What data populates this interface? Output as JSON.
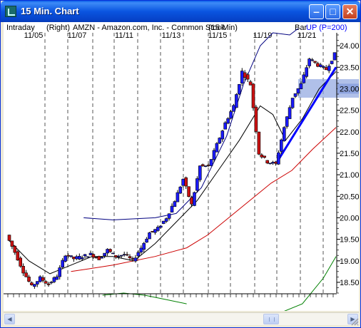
{
  "window": {
    "title": "15 Min. Chart",
    "icon": "chart-app-icon",
    "controls": [
      "minimize-icon",
      "maximize-icon",
      "close-icon"
    ]
  },
  "header": {
    "left": "Intraday",
    "scale": "(Right)",
    "symbol_desc": "AMZN - Amazon.com, Inc. - Common Stock",
    "interval": "(15-Min)",
    "bar_label": "Bar",
    "trend_label": "UP (P=200)",
    "trend_color": "#0000ff"
  },
  "chart_data": {
    "type": "line",
    "title": "AMZN - Amazon.com, Inc. - Common Stock (15-Min)",
    "x_tick_labels": [
      "11/05",
      "11/07",
      "11/11",
      "11/13",
      "11/15",
      "11/19",
      "11/21"
    ],
    "y_tick_labels": [
      "24.00",
      "23.50",
      "23.00",
      "22.50",
      "22.00",
      "21.50",
      "21.00",
      "20.50",
      "20.00",
      "19.50",
      "19.00",
      "18.50"
    ],
    "y_range": [
      18.25,
      24.25
    ],
    "highlighted_price": "23.00",
    "price": [
      [
        0,
        19.6
      ],
      [
        4,
        19.2
      ],
      [
        8,
        18.75
      ],
      [
        12,
        18.4
      ],
      [
        16,
        18.6
      ],
      [
        20,
        18.45
      ],
      [
        24,
        18.65
      ],
      [
        28,
        19.15
      ],
      [
        32,
        19.05
      ],
      [
        36,
        19.1
      ],
      [
        40,
        19.15
      ],
      [
        44,
        19.05
      ],
      [
        48,
        19.25
      ],
      [
        52,
        19.1
      ],
      [
        56,
        19.15
      ],
      [
        60,
        19.0
      ],
      [
        64,
        19.3
      ],
      [
        68,
        19.65
      ],
      [
        72,
        19.75
      ],
      [
        76,
        20.0
      ],
      [
        80,
        20.4
      ],
      [
        84,
        20.9
      ],
      [
        88,
        20.3
      ],
      [
        92,
        21.2
      ],
      [
        96,
        21.2
      ],
      [
        100,
        21.7
      ],
      [
        104,
        22.2
      ],
      [
        108,
        22.6
      ],
      [
        112,
        23.4
      ],
      [
        116,
        23.1
      ],
      [
        120,
        21.5
      ],
      [
        124,
        21.3
      ],
      [
        128,
        21.25
      ],
      [
        132,
        22.1
      ],
      [
        136,
        22.8
      ],
      [
        140,
        23.1
      ],
      [
        144,
        23.7
      ],
      [
        148,
        23.55
      ],
      [
        152,
        23.45
      ],
      [
        156,
        23.8
      ]
    ],
    "overlays": [
      {
        "role": "short-ma",
        "color": "#000000",
        "points": [
          [
            0,
            19.5
          ],
          [
            10,
            19.0
          ],
          [
            20,
            18.7
          ],
          [
            30,
            18.9
          ],
          [
            40,
            19.1
          ],
          [
            50,
            19.1
          ],
          [
            60,
            19.0
          ],
          [
            70,
            19.4
          ],
          [
            80,
            19.9
          ],
          [
            90,
            20.4
          ],
          [
            100,
            21.1
          ],
          [
            110,
            21.8
          ],
          [
            120,
            22.6
          ],
          [
            126,
            22.4
          ],
          [
            132,
            21.8
          ],
          [
            140,
            22.3
          ],
          [
            148,
            23.0
          ],
          [
            156,
            23.4
          ]
        ]
      },
      {
        "role": "long-ma",
        "color": "#cc0000",
        "points": [
          [
            30,
            18.75
          ],
          [
            50,
            18.9
          ],
          [
            70,
            19.1
          ],
          [
            85,
            19.3
          ],
          [
            95,
            19.6
          ],
          [
            105,
            20.0
          ],
          [
            115,
            20.4
          ],
          [
            125,
            20.8
          ],
          [
            135,
            21.1
          ],
          [
            145,
            21.6
          ],
          [
            156,
            22.1
          ]
        ]
      },
      {
        "role": "upper-band",
        "color": "#000080",
        "points": [
          [
            36,
            20.0
          ],
          [
            50,
            19.95
          ],
          [
            70,
            20.0
          ],
          [
            80,
            20.1
          ],
          [
            92,
            20.7
          ],
          [
            104,
            21.9
          ],
          [
            112,
            23.1
          ],
          [
            120,
            24.0
          ],
          [
            126,
            24.3
          ],
          [
            134,
            24.25
          ],
          [
            138,
            24.4
          ]
        ]
      },
      {
        "role": "trend-line",
        "color": "#0000ff",
        "points": [
          [
            128,
            21.3
          ],
          [
            156,
            23.5
          ]
        ]
      }
    ],
    "indicator_points": [
      [
        45,
        18.2
      ],
      [
        55,
        18.25
      ],
      [
        65,
        18.2
      ],
      [
        75,
        18.1
      ],
      [
        85,
        18.0
      ]
    ],
    "indicator2_points": [
      [
        130,
        17.8
      ],
      [
        140,
        18.0
      ],
      [
        150,
        18.6
      ],
      [
        156,
        19.1
      ]
    ]
  },
  "scrollbar": {
    "left_icon": "scroll-left-arrow-icon",
    "right_icon": "scroll-right-arrow-icon"
  }
}
